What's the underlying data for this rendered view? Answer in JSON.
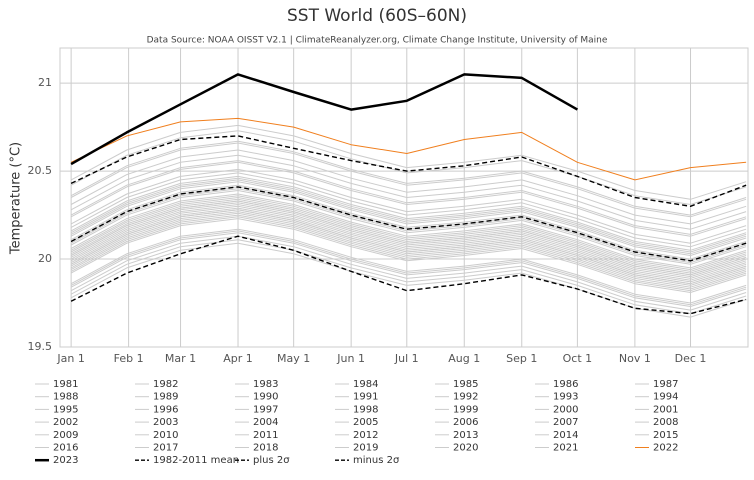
{
  "chart_data": {
    "type": "line",
    "title": "SST World (60S–60N)",
    "subtitle": "Data Source: NOAA OISST V2.1 | ClimateReanalyzer.org, Climate Change Institute, University of Maine",
    "y_label": "Temperature (°C)",
    "x": [
      0,
      30,
      59,
      90,
      120,
      151,
      181,
      212,
      243,
      273,
      304,
      334,
      364
    ],
    "xlim": [
      -6,
      365
    ],
    "xticks": [
      {
        "value": 0,
        "label": "Jan 1"
      },
      {
        "value": 31,
        "label": "Feb 1"
      },
      {
        "value": 59,
        "label": "Mar 1"
      },
      {
        "value": 90,
        "label": "Apr 1"
      },
      {
        "value": 120,
        "label": "May 1"
      },
      {
        "value": 151,
        "label": "Jun 1"
      },
      {
        "value": 181,
        "label": "Jul 1"
      },
      {
        "value": 212,
        "label": "Aug 1"
      },
      {
        "value": 243,
        "label": "Sep 1"
      },
      {
        "value": 273,
        "label": "Oct 1"
      },
      {
        "value": 304,
        "label": "Nov 1"
      },
      {
        "value": 334,
        "label": "Dec 1"
      }
    ],
    "ylim": [
      19.5,
      21.2
    ],
    "yticks": [
      19.5,
      20,
      20.5,
      21
    ],
    "grid": true,
    "legend": "bottom",
    "series": [
      {
        "name": "1981",
        "color": "#cccccc",
        "style": "solid",
        "values": [
          19.8,
          19.97,
          20.07,
          20.11,
          20.05,
          19.95,
          19.87,
          19.9,
          19.94,
          19.85,
          19.74,
          19.69,
          19.79
        ]
      },
      {
        "name": "1982",
        "color": "#cccccc",
        "style": "solid",
        "values": [
          19.85,
          20.02,
          20.12,
          20.16,
          20.1,
          20,
          19.92,
          19.95,
          19.99,
          19.9,
          19.79,
          19.74,
          19.84
        ]
      },
      {
        "name": "1983",
        "color": "#cccccc",
        "style": "solid",
        "values": [
          19.95,
          20.12,
          20.22,
          20.26,
          20.2,
          20.1,
          20.02,
          20.05,
          20.09,
          20,
          19.89,
          19.84,
          19.94
        ]
      },
      {
        "name": "1984",
        "color": "#cccccc",
        "style": "solid",
        "values": [
          19.82,
          19.99,
          20.09,
          20.13,
          20.07,
          19.97,
          19.89,
          19.92,
          19.96,
          19.87,
          19.76,
          19.71,
          19.81
        ]
      },
      {
        "name": "1985",
        "color": "#cccccc",
        "style": "solid",
        "values": [
          19.78,
          19.95,
          20.05,
          20.09,
          20.03,
          19.93,
          19.85,
          19.88,
          19.92,
          19.83,
          19.72,
          19.67,
          19.77
        ]
      },
      {
        "name": "1986",
        "color": "#cccccc",
        "style": "solid",
        "values": [
          19.84,
          20.01,
          20.11,
          20.15,
          20.09,
          19.99,
          19.91,
          19.94,
          19.98,
          19.89,
          19.78,
          19.73,
          19.83
        ]
      },
      {
        "name": "1987",
        "color": "#cccccc",
        "style": "solid",
        "values": [
          19.96,
          20.13,
          20.23,
          20.27,
          20.21,
          20.11,
          20.03,
          20.06,
          20.1,
          20.01,
          19.9,
          19.85,
          19.95
        ]
      },
      {
        "name": "1988",
        "color": "#cccccc",
        "style": "solid",
        "values": [
          20,
          20.17,
          20.27,
          20.31,
          20.25,
          20.15,
          20.07,
          20.1,
          20.14,
          20.05,
          19.94,
          19.89,
          19.99
        ]
      },
      {
        "name": "1989",
        "color": "#cccccc",
        "style": "solid",
        "values": [
          19.86,
          20.03,
          20.13,
          20.17,
          20.11,
          20.01,
          19.93,
          19.96,
          20,
          19.91,
          19.8,
          19.75,
          19.85
        ]
      },
      {
        "name": "1990",
        "color": "#cccccc",
        "style": "solid",
        "values": [
          19.98,
          20.15,
          20.25,
          20.29,
          20.23,
          20.13,
          20.05,
          20.08,
          20.12,
          20.03,
          19.92,
          19.87,
          19.97
        ]
      },
      {
        "name": "1991",
        "color": "#cccccc",
        "style": "solid",
        "values": [
          20.01,
          20.18,
          20.28,
          20.32,
          20.26,
          20.16,
          20.08,
          20.11,
          20.15,
          20.06,
          19.95,
          19.9,
          20
        ]
      },
      {
        "name": "1992",
        "color": "#cccccc",
        "style": "solid",
        "values": [
          19.97,
          20.14,
          20.24,
          20.28,
          20.22,
          20.12,
          20.04,
          20.07,
          20.11,
          20.02,
          19.91,
          19.86,
          19.96
        ]
      },
      {
        "name": "1993",
        "color": "#cccccc",
        "style": "solid",
        "values": [
          19.92,
          20.09,
          20.19,
          20.23,
          20.17,
          20.07,
          19.99,
          20.02,
          20.06,
          19.97,
          19.86,
          19.81,
          19.91
        ]
      },
      {
        "name": "1994",
        "color": "#cccccc",
        "style": "solid",
        "values": [
          19.94,
          20.11,
          20.21,
          20.25,
          20.19,
          20.09,
          20.01,
          20.04,
          20.08,
          19.99,
          19.88,
          19.83,
          19.93
        ]
      },
      {
        "name": "1995",
        "color": "#cccccc",
        "style": "solid",
        "values": [
          20.03,
          20.2,
          20.3,
          20.34,
          20.28,
          20.18,
          20.1,
          20.13,
          20.17,
          20.08,
          19.97,
          19.92,
          20.02
        ]
      },
      {
        "name": "1996",
        "color": "#cccccc",
        "style": "solid",
        "values": [
          19.93,
          20.1,
          20.2,
          20.24,
          20.18,
          20.08,
          20,
          20.03,
          20.07,
          19.98,
          19.87,
          19.82,
          19.92
        ]
      },
      {
        "name": "1997",
        "color": "#cccccc",
        "style": "solid",
        "values": [
          20.02,
          20.19,
          20.29,
          20.33,
          20.27,
          20.17,
          20.09,
          20.12,
          20.16,
          20.07,
          19.96,
          19.91,
          20.01
        ]
      },
      {
        "name": "1998",
        "color": "#cccccc",
        "style": "solid",
        "values": [
          20.2,
          20.37,
          20.47,
          20.51,
          20.45,
          20.35,
          20.27,
          20.3,
          20.34,
          20.25,
          20.14,
          20.09,
          20.19
        ]
      },
      {
        "name": "1999",
        "color": "#cccccc",
        "style": "solid",
        "values": [
          19.99,
          20.16,
          20.26,
          20.3,
          20.24,
          20.14,
          20.06,
          20.09,
          20.13,
          20.04,
          19.93,
          19.88,
          19.98
        ]
      },
      {
        "name": "2000",
        "color": "#cccccc",
        "style": "solid",
        "values": [
          19.97,
          20.14,
          20.24,
          20.28,
          20.22,
          20.12,
          20.04,
          20.07,
          20.11,
          20.02,
          19.91,
          19.86,
          19.96
        ]
      },
      {
        "name": "2001",
        "color": "#cccccc",
        "style": "solid",
        "values": [
          20.05,
          20.22,
          20.32,
          20.36,
          20.3,
          20.2,
          20.12,
          20.15,
          20.19,
          20.1,
          19.99,
          19.94,
          20.04
        ]
      },
      {
        "name": "2002",
        "color": "#cccccc",
        "style": "solid",
        "values": [
          20.1,
          20.27,
          20.37,
          20.41,
          20.35,
          20.25,
          20.17,
          20.2,
          20.24,
          20.15,
          20.04,
          19.99,
          20.09
        ]
      },
      {
        "name": "2003",
        "color": "#cccccc",
        "style": "solid",
        "values": [
          20.15,
          20.32,
          20.42,
          20.46,
          20.4,
          20.3,
          20.22,
          20.25,
          20.29,
          20.2,
          20.09,
          20.04,
          20.14
        ]
      },
      {
        "name": "2004",
        "color": "#cccccc",
        "style": "solid",
        "values": [
          20.11,
          20.28,
          20.38,
          20.42,
          20.36,
          20.26,
          20.18,
          20.21,
          20.25,
          20.16,
          20.05,
          20,
          20.1
        ]
      },
      {
        "name": "2005",
        "color": "#cccccc",
        "style": "solid",
        "values": [
          20.16,
          20.33,
          20.43,
          20.47,
          20.41,
          20.31,
          20.23,
          20.26,
          20.3,
          20.21,
          20.1,
          20.05,
          20.15
        ]
      },
      {
        "name": "2006",
        "color": "#cccccc",
        "style": "solid",
        "values": [
          20.09,
          20.26,
          20.36,
          20.4,
          20.34,
          20.24,
          20.16,
          20.19,
          20.23,
          20.14,
          20.03,
          19.98,
          20.08
        ]
      },
      {
        "name": "2007",
        "color": "#cccccc",
        "style": "solid",
        "values": [
          20.14,
          20.31,
          20.41,
          20.45,
          20.39,
          20.29,
          20.21,
          20.24,
          20.28,
          20.19,
          20.08,
          20.03,
          20.13
        ]
      },
      {
        "name": "2008",
        "color": "#cccccc",
        "style": "solid",
        "values": [
          20.02,
          20.19,
          20.29,
          20.33,
          20.27,
          20.17,
          20.09,
          20.12,
          20.16,
          20.07,
          19.96,
          19.91,
          20.01
        ]
      },
      {
        "name": "2009",
        "color": "#cccccc",
        "style": "solid",
        "values": [
          20.06,
          20.23,
          20.33,
          20.37,
          20.31,
          20.21,
          20.13,
          20.16,
          20.2,
          20.11,
          20,
          19.95,
          20.05
        ]
      },
      {
        "name": "2010",
        "color": "#cccccc",
        "style": "solid",
        "values": [
          20.25,
          20.42,
          20.52,
          20.56,
          20.5,
          20.4,
          20.32,
          20.35,
          20.39,
          20.3,
          20.19,
          20.14,
          20.24
        ]
      },
      {
        "name": "2011",
        "color": "#cccccc",
        "style": "solid",
        "values": [
          20.04,
          20.21,
          20.31,
          20.35,
          20.29,
          20.19,
          20.11,
          20.14,
          20.18,
          20.09,
          19.98,
          19.93,
          20.03
        ]
      },
      {
        "name": "2012",
        "color": "#cccccc",
        "style": "solid",
        "values": [
          20.08,
          20.25,
          20.35,
          20.39,
          20.33,
          20.23,
          20.15,
          20.18,
          20.22,
          20.13,
          20.02,
          19.97,
          20.07
        ]
      },
      {
        "name": "2013",
        "color": "#cccccc",
        "style": "solid",
        "values": [
          20.13,
          20.3,
          20.4,
          20.44,
          20.38,
          20.28,
          20.2,
          20.23,
          20.27,
          20.18,
          20.07,
          20.02,
          20.12
        ]
      },
      {
        "name": "2014",
        "color": "#cccccc",
        "style": "solid",
        "values": [
          20.18,
          20.35,
          20.45,
          20.49,
          20.43,
          20.33,
          20.25,
          20.28,
          20.32,
          20.23,
          20.12,
          20.07,
          20.17
        ]
      },
      {
        "name": "2015",
        "color": "#cccccc",
        "style": "solid",
        "values": [
          20.24,
          20.41,
          20.51,
          20.55,
          20.49,
          20.39,
          20.31,
          20.34,
          20.38,
          20.29,
          20.18,
          20.13,
          20.23
        ]
      },
      {
        "name": "2016",
        "color": "#cccccc",
        "style": "solid",
        "values": [
          20.45,
          20.62,
          20.72,
          20.76,
          20.7,
          20.6,
          20.52,
          20.55,
          20.59,
          20.5,
          20.39,
          20.34,
          20.44
        ]
      },
      {
        "name": "2017",
        "color": "#cccccc",
        "style": "solid",
        "values": [
          20.35,
          20.52,
          20.62,
          20.66,
          20.6,
          20.5,
          20.42,
          20.45,
          20.49,
          20.4,
          20.29,
          20.24,
          20.34
        ]
      },
      {
        "name": "2018",
        "color": "#cccccc",
        "style": "solid",
        "values": [
          20.28,
          20.45,
          20.55,
          20.59,
          20.53,
          20.43,
          20.35,
          20.38,
          20.42,
          20.33,
          20.22,
          20.17,
          20.27
        ]
      },
      {
        "name": "2019",
        "color": "#cccccc",
        "style": "solid",
        "values": [
          20.36,
          20.53,
          20.63,
          20.67,
          20.61,
          20.51,
          20.43,
          20.46,
          20.5,
          20.41,
          20.3,
          20.25,
          20.35
        ]
      },
      {
        "name": "2020",
        "color": "#cccccc",
        "style": "solid",
        "values": [
          20.42,
          20.59,
          20.69,
          20.73,
          20.67,
          20.57,
          20.49,
          20.52,
          20.56,
          20.47,
          20.36,
          20.31,
          20.41
        ]
      },
      {
        "name": "2021",
        "color": "#cccccc",
        "style": "solid",
        "values": [
          20.31,
          20.48,
          20.58,
          20.62,
          20.56,
          20.46,
          20.38,
          20.41,
          20.45,
          20.36,
          20.25,
          20.2,
          20.3
        ]
      },
      {
        "name": "2022",
        "color": "#f07f1e",
        "style": "solid",
        "values": [
          20.55,
          20.7,
          20.78,
          20.8,
          20.75,
          20.65,
          20.6,
          20.68,
          20.72,
          20.55,
          20.45,
          20.52,
          20.55
        ]
      },
      {
        "name": "2023",
        "color": "#000000",
        "style": "bold",
        "values": [
          20.54,
          20.72,
          20.88,
          21.05,
          20.95,
          20.85,
          20.9,
          21.05,
          21.03,
          20.85,
          null,
          null,
          null
        ]
      },
      {
        "name": "1982-2011 mean",
        "color": "#000000",
        "style": "dashed",
        "values": [
          20.1,
          20.27,
          20.37,
          20.41,
          20.35,
          20.25,
          20.17,
          20.2,
          20.24,
          20.15,
          20.04,
          19.99,
          20.09
        ]
      },
      {
        "name": "plus 2σ",
        "color": "#000000",
        "style": "dashed",
        "values": [
          20.43,
          20.58,
          20.68,
          20.7,
          20.63,
          20.56,
          20.5,
          20.53,
          20.58,
          20.47,
          20.35,
          20.3,
          20.42
        ]
      },
      {
        "name": "minus 2σ",
        "color": "#000000",
        "style": "dashed",
        "values": [
          19.76,
          19.92,
          20.03,
          20.13,
          20.05,
          19.93,
          19.82,
          19.86,
          19.91,
          19.83,
          19.72,
          19.69,
          19.77
        ]
      }
    ]
  }
}
